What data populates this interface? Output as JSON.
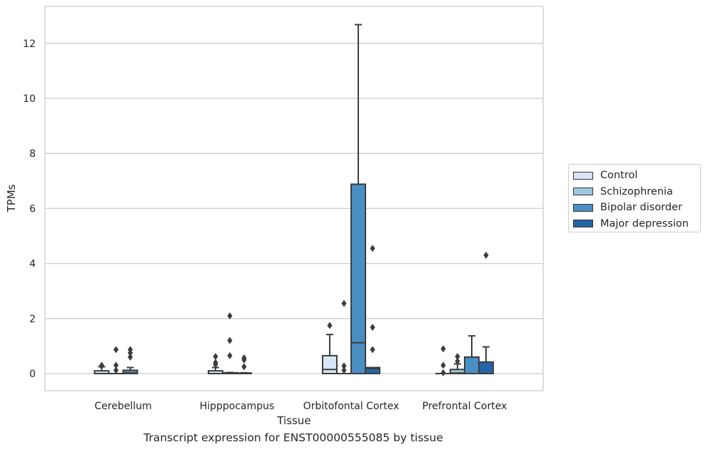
{
  "chart_data": {
    "type": "box",
    "title": "",
    "caption": "Transcript expression for ENST00000555085 by tissue",
    "xlabel": "Tissue",
    "ylabel": "TPMs",
    "ylim": [
      -0.6,
      13.3
    ],
    "yticks": [
      0,
      2,
      4,
      6,
      8,
      10,
      12
    ],
    "grid": "horizontal",
    "legend_position": "right",
    "categories": [
      "Cerebellum",
      "Hipppocampus",
      "Orbitofontal Cortex",
      "Prefrontal Cortex"
    ],
    "series": [
      {
        "name": "Control",
        "color": "#d6e6f4",
        "boxes": [
          {
            "q1": 0,
            "median": 0,
            "q3": 0.1,
            "whisker_low": 0,
            "whisker_high": 0.25,
            "outliers": [
              0.3,
              0.27
            ]
          },
          {
            "q1": 0,
            "median": 0,
            "q3": 0.1,
            "whisker_low": 0,
            "whisker_high": 0.22,
            "outliers": [
              0.62,
              0.4,
              0.33
            ]
          },
          {
            "q1": 0,
            "median": 0.15,
            "q3": 0.65,
            "whisker_low": 0,
            "whisker_high": 1.42,
            "outliers": [
              1.75
            ]
          },
          {
            "q1": 0,
            "median": 0,
            "q3": 0,
            "whisker_low": 0,
            "whisker_high": 0,
            "outliers": []
          }
        ]
      },
      {
        "name": "Schizophrenia",
        "color": "#9ecae1",
        "boxes": [
          {
            "q1": 0,
            "median": 0,
            "q3": 0,
            "whisker_low": 0,
            "whisker_high": 0,
            "outliers": [
              0.87,
              0.3,
              0.12
            ]
          },
          {
            "q1": 0,
            "median": 0,
            "q3": 0.03,
            "whisker_low": 0,
            "whisker_high": 0.04,
            "outliers": [
              2.1,
              1.2,
              0.65
            ]
          },
          {
            "q1": 0,
            "median": 0,
            "q3": 0,
            "whisker_low": 0,
            "whisker_high": 0,
            "outliers": [
              2.55,
              0.28,
              0.12
            ]
          },
          {
            "q1": 0,
            "median": 0.02,
            "q3": 0.15,
            "whisker_low": 0,
            "whisker_high": 0.35,
            "outliers": [
              0.62,
              0.45
            ]
          }
        ]
      },
      {
        "name": "Bipolar disorder",
        "color": "#4a8fc3",
        "boxes": [
          {
            "q1": 0,
            "median": 0.02,
            "q3": 0.12,
            "whisker_low": 0,
            "whisker_high": 0.22,
            "outliers": [
              0.87,
              0.75,
              0.6
            ]
          },
          {
            "q1": 0,
            "median": 0,
            "q3": 0.02,
            "whisker_low": 0,
            "whisker_high": 0.03,
            "outliers": [
              0.57,
              0.5,
              0.25
            ]
          },
          {
            "q1": 0,
            "median": 1.12,
            "q3": 6.88,
            "whisker_low": 0,
            "whisker_high": 12.68,
            "outliers": []
          },
          {
            "q1": 0,
            "median": 0,
            "q3": 0.6,
            "whisker_low": 0,
            "whisker_high": 1.37,
            "outliers": []
          }
        ]
      },
      {
        "name": "Major depression",
        "color": "#2464a8",
        "boxes": [
          null,
          null,
          {
            "q1": 0,
            "median": 0.18,
            "q3": 0.22,
            "whisker_low": 0,
            "whisker_high": 0.22,
            "outliers": [
              4.55,
              1.68,
              0.87
            ]
          },
          {
            "q1": 0,
            "median": 0,
            "q3": 0.42,
            "whisker_low": 0,
            "whisker_high": 0.97,
            "outliers": [
              4.3
            ]
          }
        ]
      }
    ],
    "extra_outliers": [
      {
        "category": 3,
        "offset": -0.39,
        "values": [
          0.9,
          0.3,
          0.03
        ]
      }
    ]
  }
}
